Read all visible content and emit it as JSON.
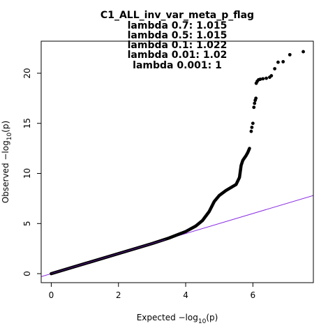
{
  "chart_data": {
    "type": "scatter",
    "title_lines": [
      "C1_ALL_inv_var_meta_p_flag",
      "lambda 0.7: 1.015",
      "lambda 0.5: 1.015",
      "lambda 0.1: 1.022",
      "lambda 0.01: 1.02",
      "lambda 0.001: 1"
    ],
    "xlabel": {
      "prefix": "Expected  −log",
      "sub": "10",
      "suffix": "(p)"
    },
    "ylabel": {
      "prefix": "Observed  −log",
      "sub": "10",
      "suffix": "(p)"
    },
    "xlim": [
      -0.3,
      7.8
    ],
    "ylim": [
      -0.9,
      23.2
    ],
    "x_ticks": [
      0,
      2,
      4,
      6
    ],
    "y_ticks": [
      0,
      5,
      10,
      15,
      20
    ],
    "reference_line": {
      "slope": 1,
      "intercept": 0,
      "color": "#8a2be2"
    },
    "point_color": "#000000",
    "series_curve": [
      [
        0,
        0
      ],
      [
        1,
        1
      ],
      [
        2,
        2
      ],
      [
        3,
        3
      ],
      [
        3.5,
        3.55
      ],
      [
        4,
        4.2
      ],
      [
        4.3,
        4.75
      ],
      [
        4.5,
        5.3
      ],
      [
        4.7,
        6.2
      ],
      [
        4.85,
        7.2
      ],
      [
        5,
        7.8
      ],
      [
        5.2,
        8.3
      ],
      [
        5.5,
        8.9
      ],
      [
        5.6,
        9.6
      ],
      [
        5.65,
        10.8
      ],
      [
        5.7,
        11.3
      ],
      [
        5.8,
        11.8
      ],
      [
        5.85,
        12.1
      ],
      [
        5.9,
        12.5
      ]
    ],
    "series_points": [
      [
        5.95,
        14.2
      ],
      [
        5.97,
        14.6
      ],
      [
        6.0,
        15.0
      ],
      [
        6.03,
        16.6
      ],
      [
        6.05,
        17.0
      ],
      [
        6.07,
        17.3
      ],
      [
        6.09,
        17.5
      ],
      [
        6.1,
        19.0
      ],
      [
        6.13,
        19.2
      ],
      [
        6.17,
        19.35
      ],
      [
        6.22,
        19.4
      ],
      [
        6.3,
        19.45
      ],
      [
        6.4,
        19.5
      ],
      [
        6.5,
        19.6
      ],
      [
        6.55,
        19.75
      ],
      [
        6.65,
        20.45
      ],
      [
        6.75,
        21.1
      ],
      [
        6.9,
        21.15
      ],
      [
        7.1,
        21.85
      ],
      [
        7.5,
        22.15
      ]
    ]
  }
}
